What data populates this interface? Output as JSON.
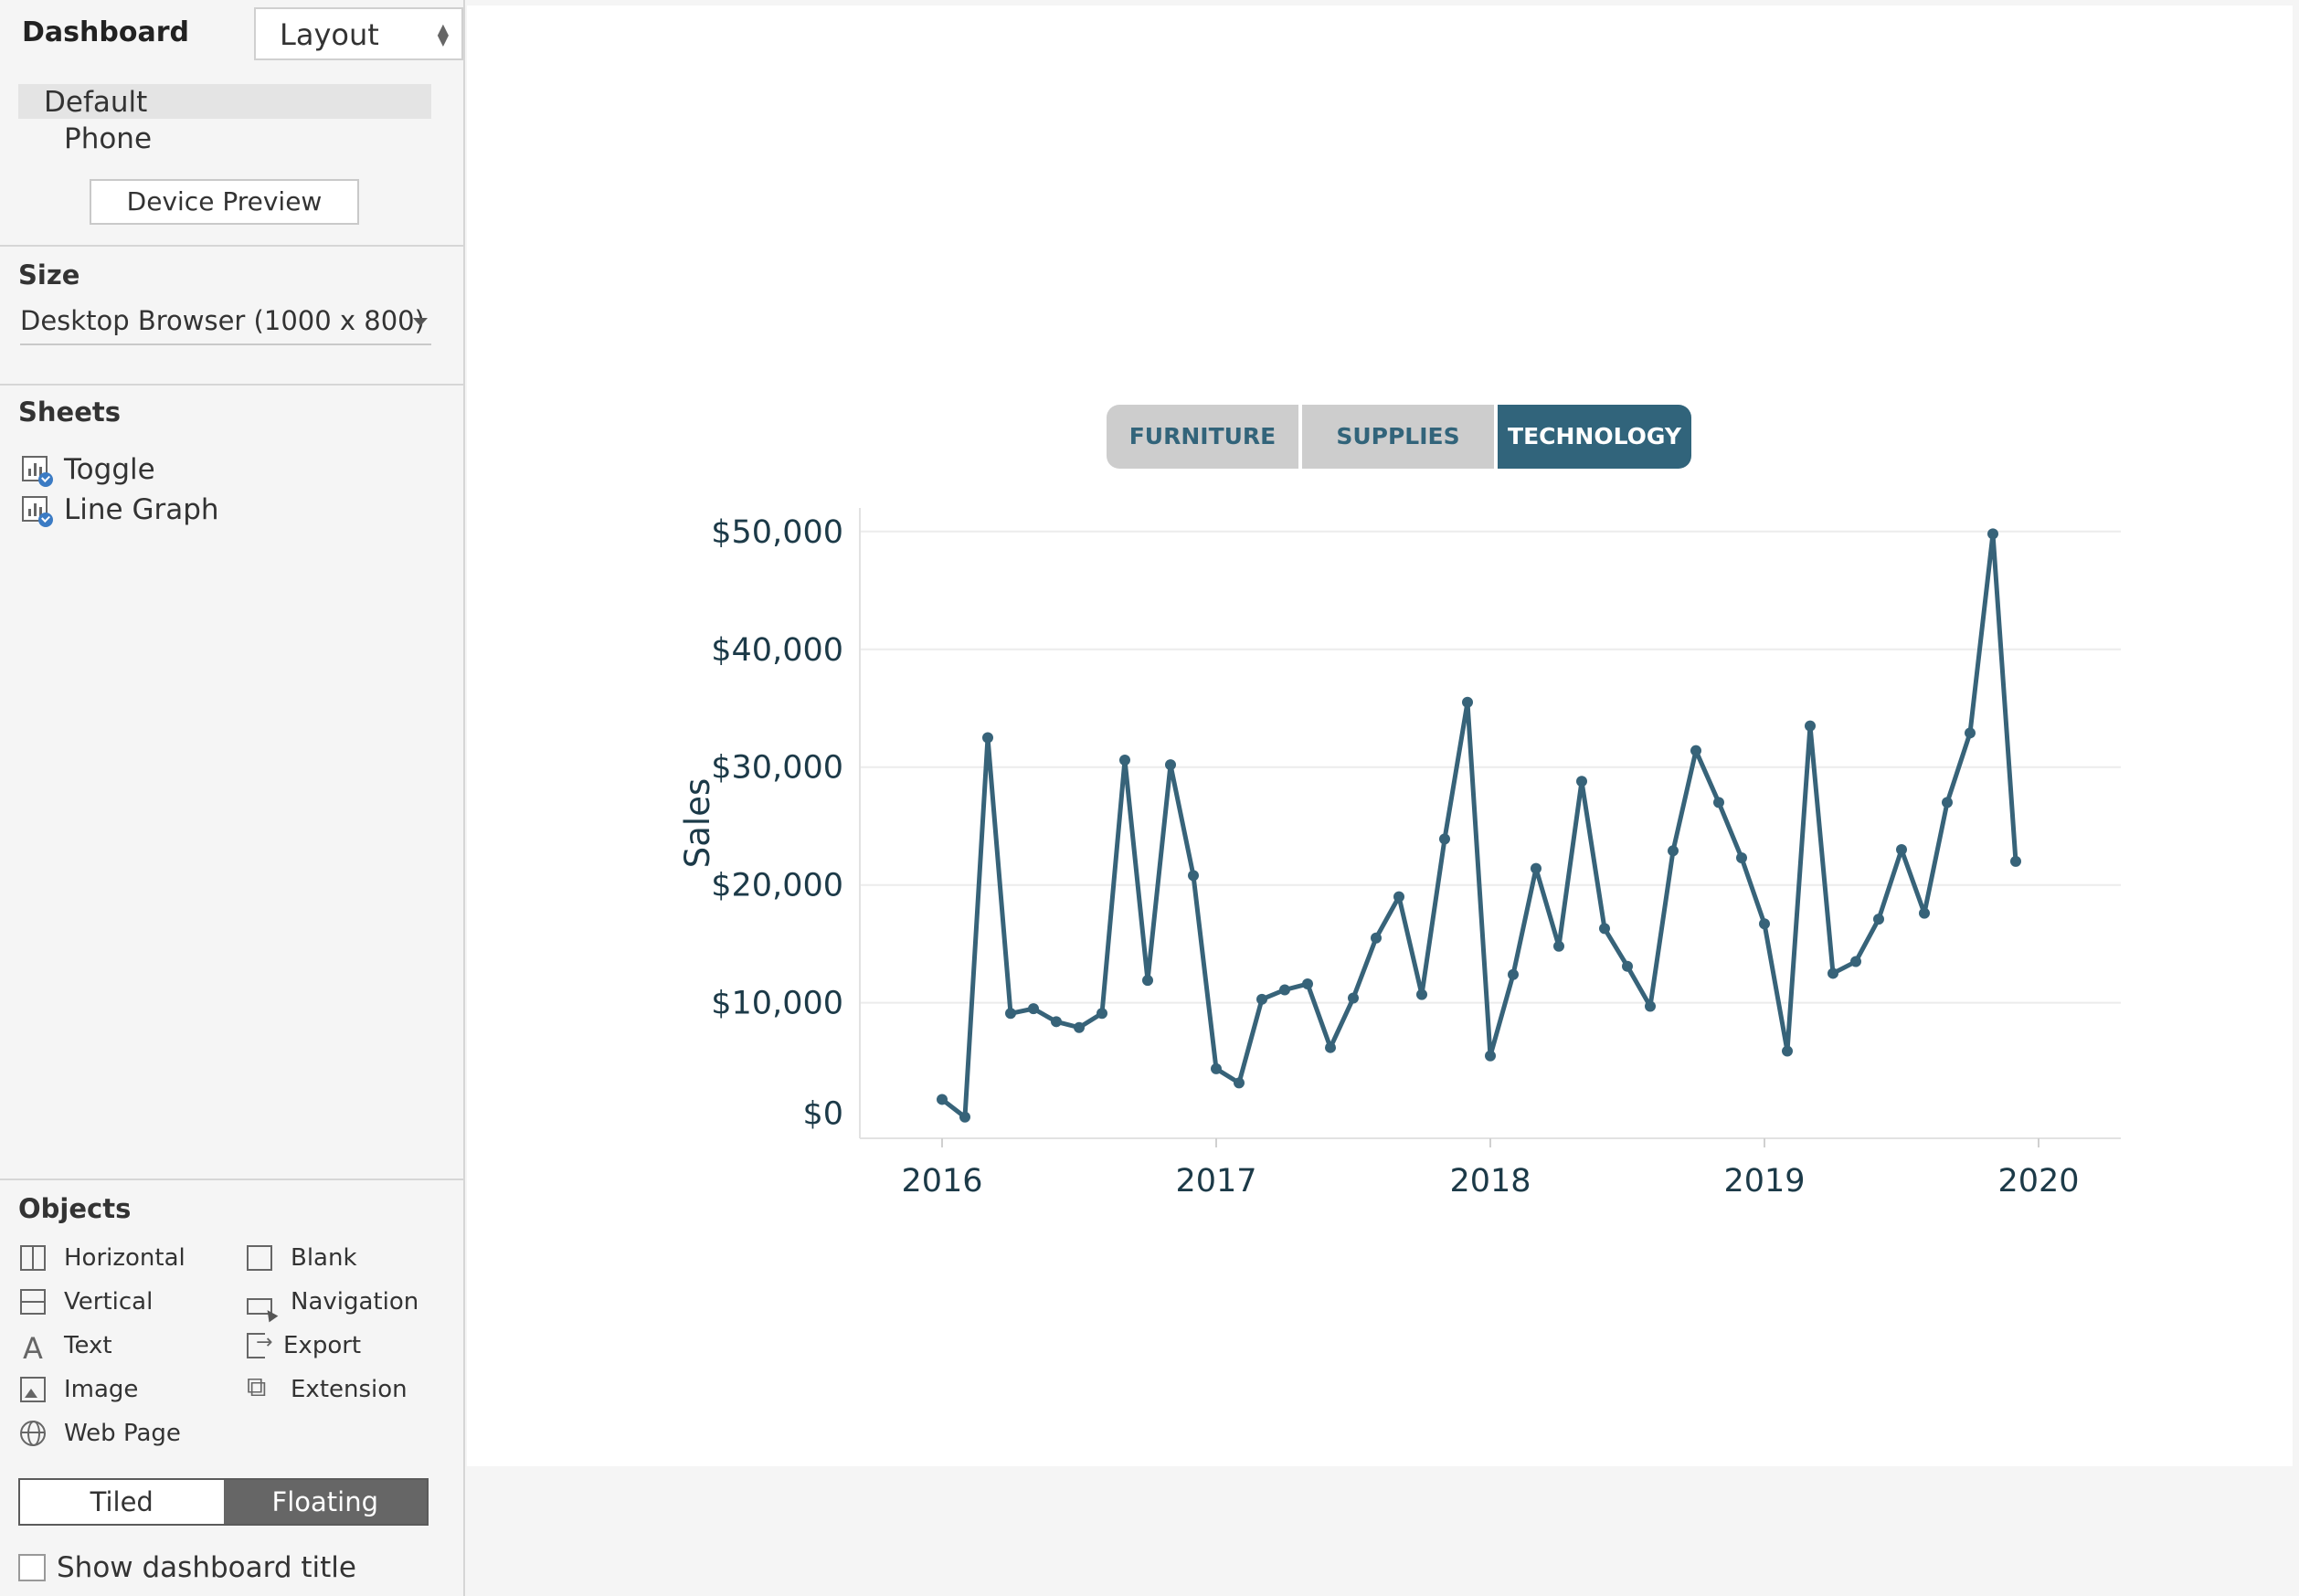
{
  "sidebar": {
    "tabs": {
      "dashboard": "Dashboard",
      "layout": "Layout"
    },
    "devices": {
      "default": "Default",
      "phone": "Phone",
      "preview_button": "Device Preview"
    },
    "size": {
      "title": "Size",
      "value": "Desktop Browser (1000 x 800)"
    },
    "sheets": {
      "title": "Sheets",
      "items": [
        "Toggle",
        "Line Graph"
      ]
    },
    "objects": {
      "title": "Objects",
      "horizontal": "Horizontal",
      "vertical": "Vertical",
      "text": "Text",
      "image": "Image",
      "web_page": "Web Page",
      "blank": "Blank",
      "navigation": "Navigation",
      "export": "Export",
      "extension": "Extension"
    },
    "mode": {
      "tiled": "Tiled",
      "floating": "Floating",
      "selected": "Floating"
    },
    "show_title": {
      "label": "Show dashboard title",
      "checked": false
    }
  },
  "toggle": {
    "buttons": [
      "FURNITURE",
      "SUPPLIES",
      "TECHNOLOGY"
    ],
    "selected": "TECHNOLOGY",
    "colors": {
      "active": "#31647b",
      "inactive": "#cdcdcd",
      "inactive_text": "#32647a"
    }
  },
  "chart_data": {
    "type": "line",
    "ylabel": "Sales",
    "xlabel": "",
    "ylim": [
      -1500,
      52000
    ],
    "xlim": [
      2015.7,
      2020.3
    ],
    "yticks": [
      {
        "value": 0,
        "label": "$0"
      },
      {
        "value": 10000,
        "label": "$10,000"
      },
      {
        "value": 20000,
        "label": "$20,000"
      },
      {
        "value": 30000,
        "label": "$30,000"
      },
      {
        "value": 40000,
        "label": "$40,000"
      },
      {
        "value": 50000,
        "label": "$50,000"
      }
    ],
    "xticks": [
      {
        "value": 2016,
        "label": "2016"
      },
      {
        "value": 2017,
        "label": "2017"
      },
      {
        "value": 2018,
        "label": "2018"
      },
      {
        "value": 2019,
        "label": "2019"
      },
      {
        "value": 2020,
        "label": "2020"
      }
    ],
    "series": [
      {
        "color": "#376379",
        "x_start_year": 2016,
        "values": [
          1800,
          300,
          32500,
          9100,
          9500,
          8400,
          7900,
          9100,
          30600,
          11900,
          30200,
          20800,
          4400,
          3200,
          10300,
          11100,
          11600,
          6200,
          10400,
          15500,
          19000,
          10700,
          23900,
          35500,
          5500,
          12400,
          21400,
          14800,
          28800,
          16300,
          13100,
          9700,
          22900,
          31400,
          27000,
          22300,
          16700,
          5900,
          33500,
          12500,
          13500,
          17100,
          23000,
          17600,
          27000,
          32900,
          49800,
          22000
        ]
      }
    ]
  }
}
